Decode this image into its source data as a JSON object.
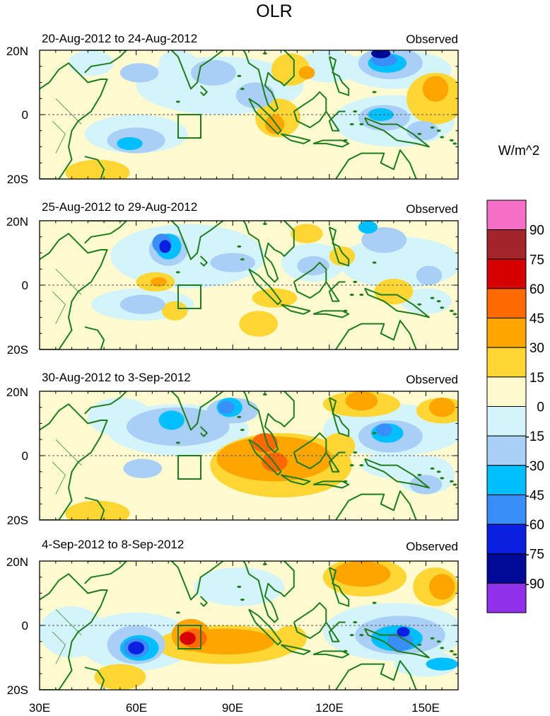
{
  "chart_data": {
    "type": "heatmap",
    "title": "OLR",
    "units": "W/m^2",
    "x_tick_labels": [
      "30E",
      "60E",
      "90E",
      "120E",
      "150E"
    ],
    "y_tick_labels": [
      "20N",
      "0",
      "20S"
    ],
    "lon_range": [
      30,
      160
    ],
    "lat_range": [
      -20,
      20
    ],
    "colorbar": {
      "levels": [
        "90",
        "75",
        "60",
        "45",
        "30",
        "15",
        "0",
        "-15",
        "-30",
        "-45",
        "-60",
        "-75",
        "-90"
      ],
      "colors": [
        "#f56fc6",
        "#a3242a",
        "#d70000",
        "#ff6a00",
        "#ffa500",
        "#ffd633",
        "#fffad0",
        "#d4f4fc",
        "#a9cff6",
        "#00bfff",
        "#3a8ef7",
        "#0a1fe0",
        "#000a96",
        "#9030ea"
      ]
    },
    "panels": [
      {
        "period": "20-Aug-2012 to 24-Aug-2012",
        "label": "Observed"
      },
      {
        "period": "25-Aug-2012 to 29-Aug-2012",
        "label": "Observed"
      },
      {
        "period": "30-Aug-2012 to 3-Sep-2012",
        "label": "Observed"
      },
      {
        "period": "4-Sep-2012 to 8-Sep-2012",
        "label": "Observed"
      }
    ]
  }
}
